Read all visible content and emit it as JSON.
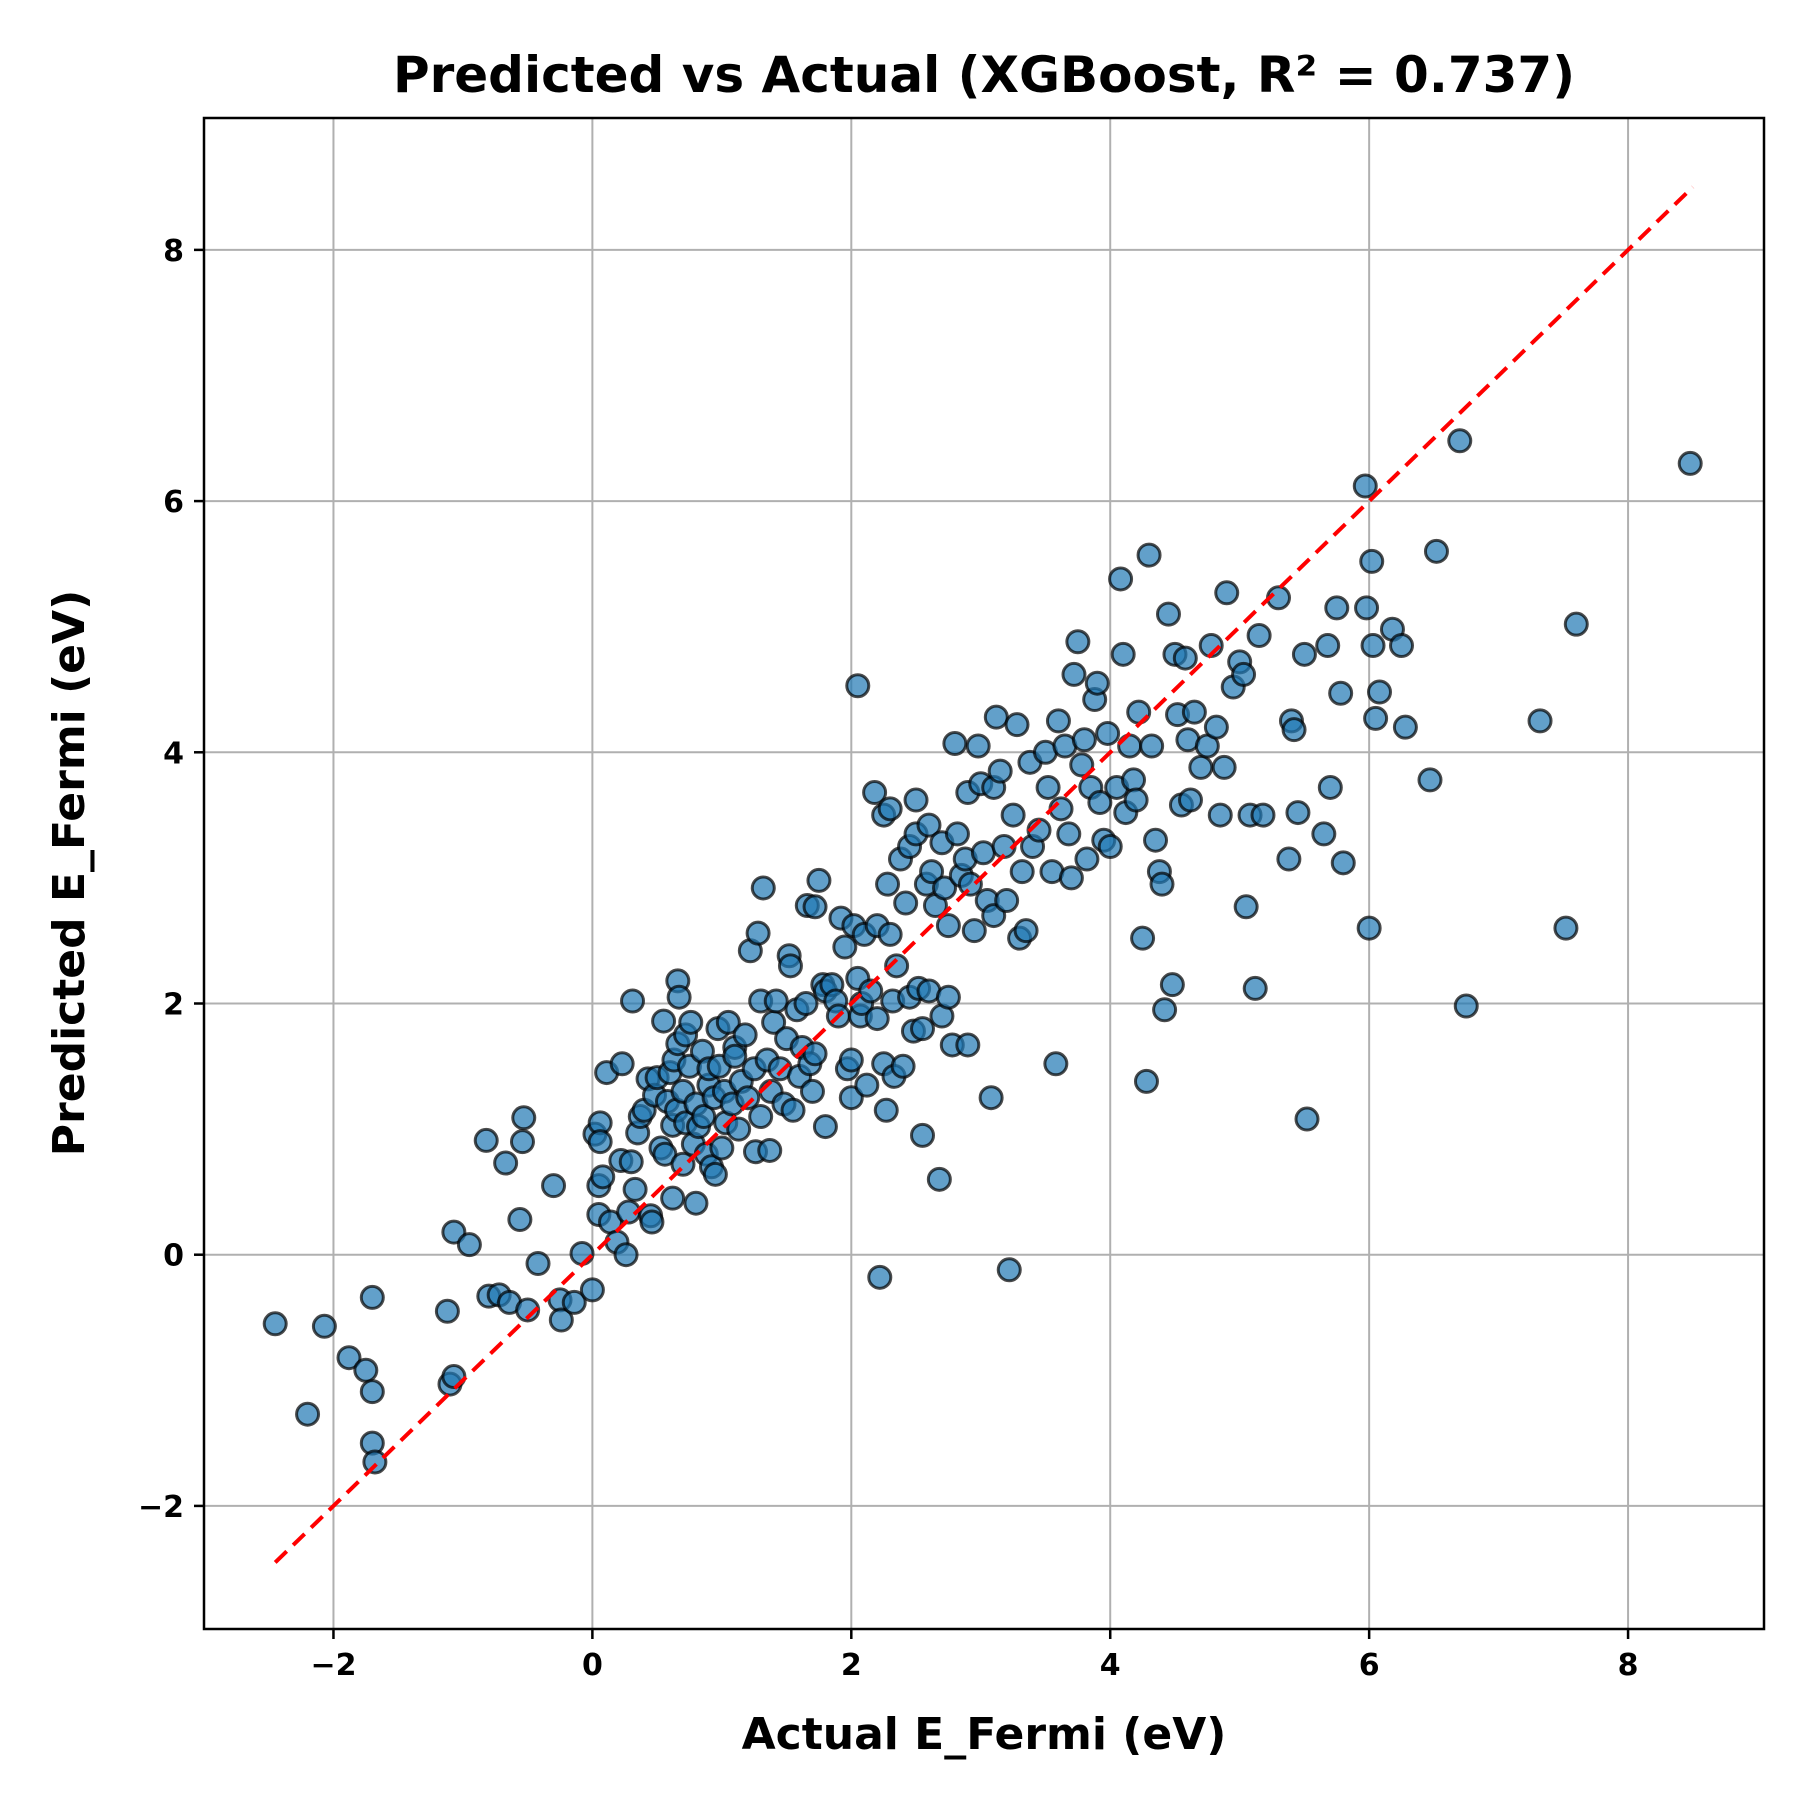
{
  "chart_data": {
    "type": "scatter",
    "title": "Predicted vs Actual (XGBoost, R² = 0.737)",
    "xlabel": "Actual E_Fermi (eV)",
    "ylabel": "Predicted E_Fermi (eV)",
    "xlim": [
      -3.0,
      9.05
    ],
    "ylim": [
      -2.98,
      9.05
    ],
    "xticks": [
      -2,
      0,
      2,
      4,
      6,
      8
    ],
    "yticks": [
      -2,
      0,
      2,
      4,
      6,
      8
    ],
    "xtick_labels": [
      "−2",
      "0",
      "2",
      "4",
      "6",
      "8"
    ],
    "ytick_labels": [
      "−2",
      "0",
      "2",
      "4",
      "6",
      "8"
    ],
    "grid": true,
    "legend": "none",
    "marker_color": "#1f77b4",
    "reference_line": {
      "style": "dashed",
      "color": "#ff0000",
      "from": [
        -2.45,
        -2.45
      ],
      "to": [
        8.5,
        8.5
      ]
    },
    "points": [
      [
        -2.45,
        -0.55
      ],
      [
        -2.2,
        -1.27
      ],
      [
        -2.07,
        -0.57
      ],
      [
        -1.88,
        -0.82
      ],
      [
        -1.75,
        -0.92
      ],
      [
        -1.7,
        -0.34
      ],
      [
        -1.7,
        -1.09
      ],
      [
        -1.7,
        -1.5
      ],
      [
        -1.68,
        -1.65
      ],
      [
        -1.12,
        -0.45
      ],
      [
        -1.1,
        -1.03
      ],
      [
        -1.07,
        -0.97
      ],
      [
        -1.07,
        0.18
      ],
      [
        -0.95,
        0.08
      ],
      [
        -0.82,
        0.91
      ],
      [
        -0.8,
        -0.33
      ],
      [
        -0.72,
        -0.32
      ],
      [
        -0.67,
        0.73
      ],
      [
        -0.64,
        -0.38
      ],
      [
        -0.54,
        0.9
      ],
      [
        -0.53,
        1.09
      ],
      [
        -0.56,
        0.28
      ],
      [
        -0.5,
        -0.44
      ],
      [
        -0.42,
        -0.07
      ],
      [
        -0.3,
        0.55
      ],
      [
        -0.25,
        -0.36
      ],
      [
        -0.24,
        -0.52
      ],
      [
        -0.14,
        -0.38
      ],
      [
        -0.08,
        0.01
      ],
      [
        0.0,
        -0.28
      ],
      [
        0.05,
        0.32
      ],
      [
        0.02,
        0.96
      ],
      [
        0.05,
        0.55
      ],
      [
        0.06,
        1.05
      ],
      [
        0.06,
        0.9
      ],
      [
        0.08,
        0.62
      ],
      [
        0.11,
        1.45
      ],
      [
        0.14,
        0.26
      ],
      [
        0.19,
        0.1
      ],
      [
        0.22,
        0.75
      ],
      [
        0.23,
        1.52
      ],
      [
        0.26,
        0.0
      ],
      [
        0.28,
        0.34
      ],
      [
        0.3,
        0.74
      ],
      [
        0.31,
        2.02
      ],
      [
        0.33,
        0.52
      ],
      [
        0.35,
        0.97
      ],
      [
        0.37,
        1.1
      ],
      [
        0.4,
        1.15
      ],
      [
        0.43,
        1.4
      ],
      [
        0.45,
        0.31
      ],
      [
        0.46,
        0.26
      ],
      [
        0.48,
        1.27
      ],
      [
        0.5,
        1.41
      ],
      [
        0.53,
        0.85
      ],
      [
        0.55,
        1.86
      ],
      [
        0.56,
        0.8
      ],
      [
        0.58,
        1.22
      ],
      [
        0.6,
        1.45
      ],
      [
        0.62,
        1.03
      ],
      [
        0.62,
        0.45
      ],
      [
        0.63,
        1.55
      ],
      [
        0.65,
        1.15
      ],
      [
        0.66,
        1.68
      ],
      [
        0.66,
        2.18
      ],
      [
        0.67,
        2.05
      ],
      [
        0.7,
        0.72
      ],
      [
        0.7,
        1.3
      ],
      [
        0.72,
        1.75
      ],
      [
        0.72,
        1.05
      ],
      [
        0.75,
        1.5
      ],
      [
        0.76,
        1.85
      ],
      [
        0.78,
        0.88
      ],
      [
        0.8,
        0.41
      ],
      [
        0.8,
        1.2
      ],
      [
        0.82,
        1.02
      ],
      [
        0.85,
        1.62
      ],
      [
        0.86,
        1.1
      ],
      [
        0.88,
        0.8
      ],
      [
        0.9,
        1.35
      ],
      [
        0.9,
        1.48
      ],
      [
        0.92,
        0.7
      ],
      [
        0.94,
        1.25
      ],
      [
        0.95,
        0.64
      ],
      [
        0.97,
        1.8
      ],
      [
        0.98,
        1.5
      ],
      [
        1.0,
        0.85
      ],
      [
        1.02,
        1.3
      ],
      [
        1.03,
        1.05
      ],
      [
        1.05,
        1.85
      ],
      [
        1.08,
        1.2
      ],
      [
        1.1,
        1.65
      ],
      [
        1.1,
        1.58
      ],
      [
        1.13,
        1.0
      ],
      [
        1.15,
        1.38
      ],
      [
        1.18,
        1.75
      ],
      [
        1.2,
        1.25
      ],
      [
        1.22,
        2.42
      ],
      [
        1.25,
        1.48
      ],
      [
        1.26,
        0.82
      ],
      [
        1.28,
        2.56
      ],
      [
        1.3,
        1.1
      ],
      [
        1.3,
        2.02
      ],
      [
        1.32,
        2.92
      ],
      [
        1.35,
        1.55
      ],
      [
        1.37,
        0.83
      ],
      [
        1.38,
        1.3
      ],
      [
        1.4,
        1.85
      ],
      [
        1.42,
        2.02
      ],
      [
        1.45,
        1.48
      ],
      [
        1.48,
        1.2
      ],
      [
        1.5,
        1.72
      ],
      [
        1.52,
        2.38
      ],
      [
        1.53,
        2.3
      ],
      [
        1.55,
        1.15
      ],
      [
        1.58,
        1.95
      ],
      [
        1.6,
        1.42
      ],
      [
        1.62,
        1.65
      ],
      [
        1.65,
        2.0
      ],
      [
        1.66,
        2.78
      ],
      [
        1.68,
        1.52
      ],
      [
        1.7,
        1.3
      ],
      [
        1.72,
        1.6
      ],
      [
        1.72,
        2.77
      ],
      [
        1.75,
        2.98
      ],
      [
        1.78,
        2.15
      ],
      [
        1.8,
        1.02
      ],
      [
        1.8,
        2.1
      ],
      [
        1.85,
        2.15
      ],
      [
        1.88,
        2.02
      ],
      [
        1.9,
        1.9
      ],
      [
        1.92,
        2.68
      ],
      [
        1.95,
        2.45
      ],
      [
        1.97,
        1.48
      ],
      [
        2.0,
        1.25
      ],
      [
        2.0,
        1.55
      ],
      [
        2.02,
        2.62
      ],
      [
        2.05,
        4.53
      ],
      [
        2.05,
        2.2
      ],
      [
        2.07,
        1.9
      ],
      [
        2.08,
        2.0
      ],
      [
        2.1,
        2.55
      ],
      [
        2.12,
        1.35
      ],
      [
        2.15,
        2.1
      ],
      [
        2.18,
        3.68
      ],
      [
        2.2,
        2.62
      ],
      [
        2.2,
        1.88
      ],
      [
        2.22,
        -0.18
      ],
      [
        2.25,
        3.5
      ],
      [
        2.25,
        1.52
      ],
      [
        2.27,
        1.15
      ],
      [
        2.28,
        2.95
      ],
      [
        2.3,
        2.55
      ],
      [
        2.3,
        3.55
      ],
      [
        2.32,
        2.02
      ],
      [
        2.33,
        1.42
      ],
      [
        2.35,
        2.3
      ],
      [
        2.38,
        3.15
      ],
      [
        2.4,
        1.5
      ],
      [
        2.42,
        2.8
      ],
      [
        2.45,
        3.25
      ],
      [
        2.45,
        2.05
      ],
      [
        2.48,
        1.78
      ],
      [
        2.5,
        3.62
      ],
      [
        2.5,
        3.35
      ],
      [
        2.52,
        2.12
      ],
      [
        2.55,
        1.8
      ],
      [
        2.55,
        0.95
      ],
      [
        2.58,
        2.95
      ],
      [
        2.6,
        3.42
      ],
      [
        2.6,
        2.1
      ],
      [
        2.62,
        3.05
      ],
      [
        2.65,
        2.78
      ],
      [
        2.68,
        0.6
      ],
      [
        2.7,
        3.28
      ],
      [
        2.7,
        1.9
      ],
      [
        2.72,
        2.92
      ],
      [
        2.75,
        2.62
      ],
      [
        2.75,
        2.05
      ],
      [
        2.78,
        1.67
      ],
      [
        2.8,
        4.07
      ],
      [
        2.82,
        3.35
      ],
      [
        2.85,
        3.02
      ],
      [
        2.88,
        3.15
      ],
      [
        2.9,
        1.67
      ],
      [
        2.9,
        3.68
      ],
      [
        2.92,
        2.95
      ],
      [
        2.95,
        2.58
      ],
      [
        2.98,
        4.05
      ],
      [
        3.0,
        3.75
      ],
      [
        3.02,
        3.2
      ],
      [
        3.05,
        2.82
      ],
      [
        3.08,
        1.25
      ],
      [
        3.1,
        3.72
      ],
      [
        3.1,
        2.7
      ],
      [
        3.12,
        4.28
      ],
      [
        3.15,
        3.85
      ],
      [
        3.18,
        3.25
      ],
      [
        3.2,
        2.82
      ],
      [
        3.22,
        -0.12
      ],
      [
        3.25,
        3.5
      ],
      [
        3.28,
        4.22
      ],
      [
        3.3,
        2.52
      ],
      [
        3.32,
        3.05
      ],
      [
        3.35,
        2.58
      ],
      [
        3.38,
        3.92
      ],
      [
        3.4,
        3.25
      ],
      [
        3.45,
        3.38
      ],
      [
        3.5,
        4.0
      ],
      [
        3.52,
        3.72
      ],
      [
        3.55,
        3.05
      ],
      [
        3.58,
        1.52
      ],
      [
        3.6,
        4.25
      ],
      [
        3.62,
        3.55
      ],
      [
        3.65,
        4.05
      ],
      [
        3.68,
        3.35
      ],
      [
        3.7,
        3.0
      ],
      [
        3.72,
        4.62
      ],
      [
        3.75,
        4.88
      ],
      [
        3.78,
        3.9
      ],
      [
        3.8,
        4.1
      ],
      [
        3.82,
        3.15
      ],
      [
        3.85,
        3.72
      ],
      [
        3.88,
        4.42
      ],
      [
        3.9,
        4.55
      ],
      [
        3.92,
        3.6
      ],
      [
        3.95,
        3.3
      ],
      [
        3.98,
        4.15
      ],
      [
        4.0,
        3.25
      ],
      [
        4.05,
        3.72
      ],
      [
        4.08,
        5.38
      ],
      [
        4.1,
        4.78
      ],
      [
        4.12,
        3.52
      ],
      [
        4.15,
        4.05
      ],
      [
        4.18,
        3.78
      ],
      [
        4.2,
        3.62
      ],
      [
        4.22,
        4.32
      ],
      [
        4.25,
        2.52
      ],
      [
        4.28,
        1.38
      ],
      [
        4.3,
        5.57
      ],
      [
        4.32,
        4.05
      ],
      [
        4.35,
        3.3
      ],
      [
        4.38,
        3.05
      ],
      [
        4.4,
        2.95
      ],
      [
        4.42,
        1.95
      ],
      [
        4.45,
        5.1
      ],
      [
        4.48,
        2.15
      ],
      [
        4.5,
        4.78
      ],
      [
        4.52,
        4.3
      ],
      [
        4.55,
        3.58
      ],
      [
        4.58,
        4.75
      ],
      [
        4.6,
        4.1
      ],
      [
        4.62,
        3.62
      ],
      [
        4.65,
        4.32
      ],
      [
        4.7,
        3.88
      ],
      [
        4.75,
        4.05
      ],
      [
        4.78,
        4.85
      ],
      [
        4.82,
        4.2
      ],
      [
        4.85,
        3.5
      ],
      [
        4.88,
        3.88
      ],
      [
        4.9,
        5.27
      ],
      [
        4.95,
        4.52
      ],
      [
        5.0,
        4.72
      ],
      [
        5.03,
        4.62
      ],
      [
        5.05,
        2.77
      ],
      [
        5.08,
        3.5
      ],
      [
        5.12,
        2.12
      ],
      [
        5.15,
        4.93
      ],
      [
        5.18,
        3.5
      ],
      [
        5.3,
        5.23
      ],
      [
        5.38,
        3.15
      ],
      [
        5.4,
        4.25
      ],
      [
        5.42,
        4.18
      ],
      [
        5.45,
        3.52
      ],
      [
        5.5,
        4.78
      ],
      [
        5.52,
        1.08
      ],
      [
        5.65,
        3.35
      ],
      [
        5.68,
        4.85
      ],
      [
        5.7,
        3.72
      ],
      [
        5.75,
        5.15
      ],
      [
        5.78,
        4.47
      ],
      [
        5.8,
        3.12
      ],
      [
        5.97,
        6.12
      ],
      [
        5.98,
        5.15
      ],
      [
        6.0,
        2.6
      ],
      [
        6.02,
        5.52
      ],
      [
        6.03,
        4.85
      ],
      [
        6.05,
        4.27
      ],
      [
        6.08,
        4.48
      ],
      [
        6.18,
        4.98
      ],
      [
        6.25,
        4.85
      ],
      [
        6.28,
        4.2
      ],
      [
        6.47,
        3.78
      ],
      [
        6.52,
        5.6
      ],
      [
        6.7,
        6.48
      ],
      [
        6.75,
        1.98
      ],
      [
        7.32,
        4.25
      ],
      [
        7.52,
        2.6
      ],
      [
        7.6,
        5.02
      ],
      [
        8.48,
        6.3
      ]
    ]
  }
}
